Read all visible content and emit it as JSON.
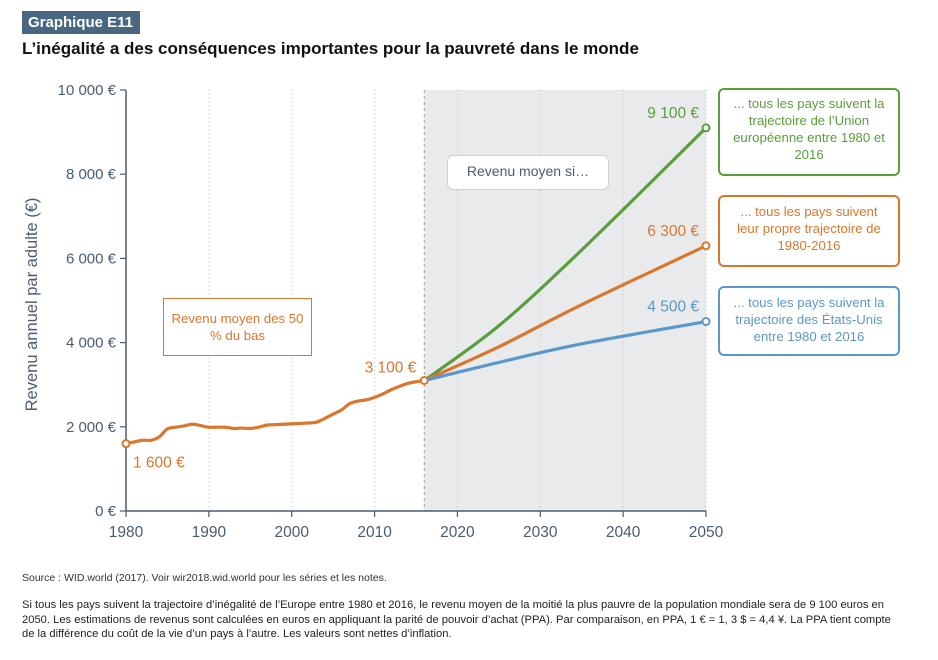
{
  "header": {
    "badge": "Graphique E11",
    "title": "L’inégalité a des conséquences importantes pour la pauvreté dans le monde"
  },
  "footer": {
    "source": "Source : WID.world (2017). Voir wir2018.wid.world pour les séries et les notes.",
    "note": "Si tous les pays suivent la trajectoire d’inégalité de l’Europe entre 1980 et 2016, le revenu moyen de la moitié la plus pauvre de la population mondiale sera de 9 100 euros en 2050. Les estimations de revenus sont calculées en euros en appliquant la parité de pouvoir d’achat (PPA). Par comparaison, en PPA, 1 € = 1, 3 $ = 4,4 ¥. La PPA tient compte de la différence du coût de la vie d’un pays à l’autre. Les valeurs sont nettes d’inflation."
  },
  "chart_data": {
    "type": "line",
    "title": "L’inégalité a des conséquences importantes pour la pauvreté dans le monde",
    "xlabel": "",
    "ylabel": "Revenu annuel par adulte (€)",
    "xlim": [
      1980,
      2050
    ],
    "ylim": [
      0,
      10000
    ],
    "x_ticks": [
      1980,
      1990,
      2000,
      2010,
      2020,
      2030,
      2040,
      2050
    ],
    "y_ticks": [
      {
        "value": 0,
        "label": "0 €"
      },
      {
        "value": 2000,
        "label": "2 000 €"
      },
      {
        "value": 4000,
        "label": "4 000 €"
      },
      {
        "value": 6000,
        "label": "6 000 €"
      },
      {
        "value": 8000,
        "label": "8 000 €"
      },
      {
        "value": 10000,
        "label": "10 000 €"
      }
    ],
    "grid": "vertical dotted lines",
    "shaded_region": {
      "from": 2016,
      "to": 2050,
      "label": "Revenu moyen si…"
    },
    "historical": {
      "label": "Revenu moyen des 50 % du bas",
      "color": "#d9772e",
      "x": [
        1980,
        1981,
        1982,
        1983,
        1984,
        1985,
        1986,
        1987,
        1988,
        1989,
        1990,
        1991,
        1992,
        1993,
        1994,
        1995,
        1996,
        1997,
        1998,
        1999,
        2000,
        2001,
        2002,
        2003,
        2004,
        2005,
        2006,
        2007,
        2008,
        2009,
        2010,
        2011,
        2012,
        2013,
        2014,
        2015,
        2016
      ],
      "y": [
        1600,
        1640,
        1680,
        1680,
        1760,
        1950,
        1990,
        2020,
        2060,
        2030,
        1990,
        1990,
        1990,
        1960,
        1970,
        1960,
        1990,
        2040,
        2050,
        2060,
        2070,
        2080,
        2090,
        2110,
        2200,
        2300,
        2400,
        2550,
        2610,
        2640,
        2700,
        2780,
        2880,
        2960,
        3030,
        3070,
        3100
      ]
    },
    "series": [
      {
        "name": "... tous les pays suivent la trajectoire de l’Union européenne entre 1980 et 2016",
        "color": "#5a9e3d",
        "x": [
          2016,
          2025,
          2035,
          2050
        ],
        "y": [
          3100,
          4400,
          6200,
          9100
        ],
        "end_label": "9 100 €"
      },
      {
        "name": "... tous les pays suivent leur propre trajectoire de 1980-2016",
        "color": "#d9772e",
        "x": [
          2016,
          2025,
          2035,
          2050
        ],
        "y": [
          3100,
          3900,
          4900,
          6300
        ],
        "end_label": "6 300 €"
      },
      {
        "name": "... tous les pays suivent la trajectoire des États-Unis entre 1980 et 2016",
        "color": "#5b98c9",
        "x": [
          2016,
          2025,
          2035,
          2050
        ],
        "y": [
          3100,
          3530,
          3970,
          4500
        ],
        "end_label": "4 500 €"
      }
    ],
    "annotations": [
      {
        "text": "1 600 €",
        "x": 1980,
        "y": 1600
      },
      {
        "text": "3 100 €",
        "x": 2016,
        "y": 3100
      }
    ]
  }
}
